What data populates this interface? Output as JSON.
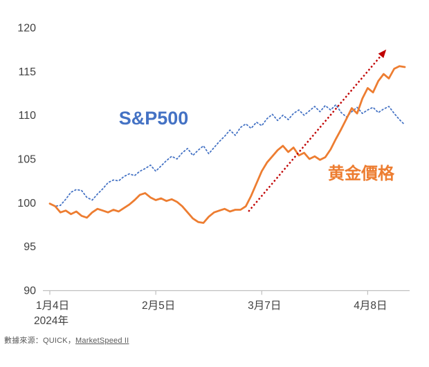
{
  "chart_data": {
    "type": "line",
    "title": "",
    "xlabel": "",
    "ylabel": "",
    "ylim": [
      90,
      120
    ],
    "y_ticks": [
      90,
      95,
      100,
      105,
      110,
      115,
      120
    ],
    "x_tick_labels": [
      "1月4日",
      "2月5日",
      "3月7日",
      "4月8日"
    ],
    "x_tick_indices": [
      0,
      20,
      40,
      60
    ],
    "x_sub_label": "2024年",
    "grid": false,
    "legend": "inline-labels",
    "axis_color": "#BFBFBF",
    "tick_text_color": "#404040",
    "series": [
      {
        "key": "sp500",
        "name": "S&P500",
        "label": "S&P500",
        "color": "#4472C4",
        "style": "dotted",
        "values": [
          99.9,
          99.6,
          99.7,
          100.4,
          101.2,
          101.5,
          101.4,
          100.6,
          100.3,
          101.0,
          101.6,
          102.3,
          102.6,
          102.5,
          103.0,
          103.3,
          103.1,
          103.6,
          103.9,
          104.3,
          103.6,
          104.2,
          104.8,
          105.3,
          105.0,
          105.7,
          106.2,
          105.4,
          106.0,
          106.5,
          105.6,
          106.3,
          107.0,
          107.6,
          108.3,
          107.7,
          108.6,
          109.0,
          108.5,
          109.2,
          108.8,
          109.6,
          110.1,
          109.4,
          110.0,
          109.5,
          110.2,
          110.6,
          110.0,
          110.5,
          111.0,
          110.4,
          111.1,
          110.6,
          111.2,
          110.3,
          109.8,
          110.4,
          110.9,
          110.2,
          110.6,
          110.9,
          110.3,
          110.7,
          111.0,
          110.2,
          109.5,
          108.9
        ]
      },
      {
        "key": "gold",
        "name": "黄金價格",
        "label": "黄金價格",
        "color": "#ED7D31",
        "style": "solid",
        "values": [
          99.9,
          99.6,
          98.9,
          99.1,
          98.7,
          99.0,
          98.5,
          98.3,
          98.9,
          99.3,
          99.1,
          98.9,
          99.2,
          99.0,
          99.4,
          99.8,
          100.3,
          100.9,
          101.1,
          100.6,
          100.3,
          100.5,
          100.2,
          100.4,
          100.1,
          99.6,
          98.9,
          98.2,
          97.8,
          97.7,
          98.4,
          98.9,
          99.1,
          99.3,
          99.0,
          99.2,
          99.2,
          99.6,
          100.8,
          102.2,
          103.6,
          104.6,
          105.3,
          106.0,
          106.5,
          105.8,
          106.3,
          105.4,
          105.7,
          105.0,
          105.3,
          104.9,
          105.2,
          106.1,
          107.3,
          108.4,
          109.6,
          110.8,
          110.2,
          111.9,
          113.1,
          112.6,
          113.9,
          114.7,
          114.2,
          115.3,
          115.6,
          115.5
        ]
      }
    ],
    "annotations": {
      "arrow": {
        "color": "#C00000",
        "style": "dotted",
        "from_index": 37.5,
        "from_value": 99.0,
        "to_index": 63.5,
        "to_value": 117.5
      }
    }
  },
  "source": {
    "prefix": "數據來源：QUICK，",
    "link": "MarketSpeed II"
  }
}
